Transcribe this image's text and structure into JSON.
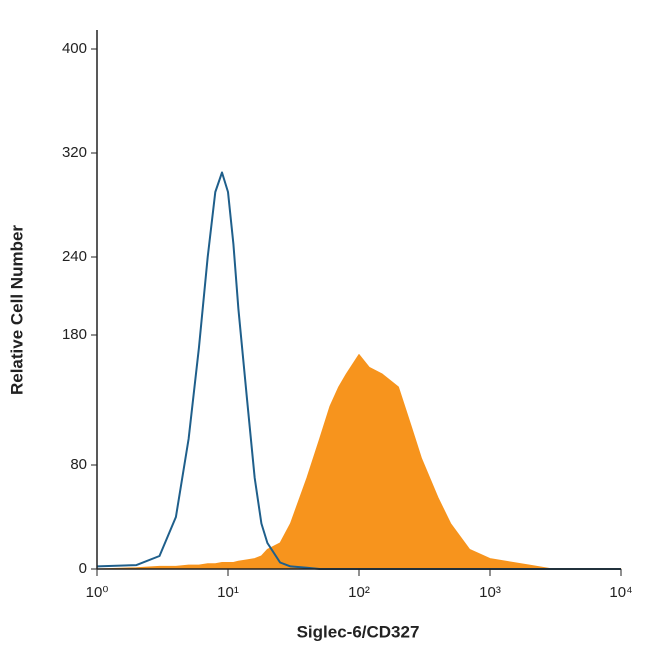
{
  "chart_data": {
    "type": "histogram-overlay",
    "xlabel": "Siglec-6/CD327",
    "ylabel": "Relative Cell Number",
    "xscale": "log",
    "xlim": [
      1,
      10000
    ],
    "xticks": [
      {
        "value": 1,
        "label": "10⁰"
      },
      {
        "value": 10,
        "label": "10¹"
      },
      {
        "value": 100,
        "label": "10²"
      },
      {
        "value": 1000,
        "label": "10³"
      },
      {
        "value": 10000,
        "label": "10⁴"
      }
    ],
    "ylim": [
      0,
      400
    ],
    "yticks": [
      0,
      80,
      180,
      240,
      320,
      400
    ],
    "x": [
      1,
      2,
      3,
      4,
      5,
      6,
      7,
      8,
      9,
      10,
      11,
      12,
      14,
      16,
      18,
      20,
      25,
      30,
      40,
      50,
      60,
      70,
      80,
      100,
      120,
      150,
      200,
      250,
      300,
      400,
      500,
      700,
      1000,
      2000,
      3000,
      10000
    ],
    "series": [
      {
        "color": "#f7941d",
        "fill": true,
        "values": [
          0,
          1,
          2,
          2,
          3,
          3,
          4,
          4,
          5,
          5,
          5,
          6,
          7,
          8,
          10,
          15,
          20,
          35,
          70,
          100,
          125,
          140,
          150,
          165,
          155,
          150,
          140,
          110,
          85,
          55,
          35,
          15,
          8,
          3,
          0,
          0
        ]
      },
      {
        "color": "#1f5f8b",
        "fill": false,
        "values": [
          2,
          3,
          10,
          40,
          100,
          170,
          240,
          290,
          305,
          290,
          250,
          200,
          130,
          70,
          35,
          20,
          5,
          2,
          1,
          0,
          0,
          0,
          0,
          0,
          0,
          0,
          0,
          0,
          0,
          0,
          0,
          0,
          0,
          0,
          0,
          0
        ]
      }
    ]
  }
}
